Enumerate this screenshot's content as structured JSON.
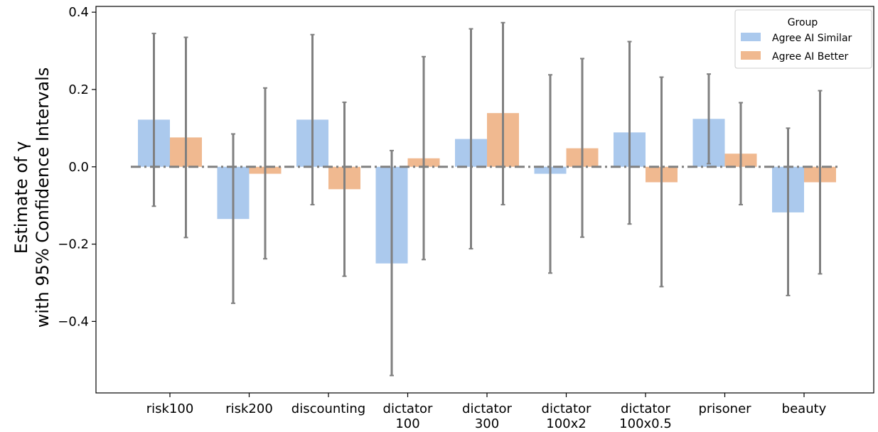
{
  "chart_data": {
    "type": "bar",
    "title": "",
    "xlabel": "",
    "ylabel_line1": "Estimate of γ",
    "ylabel_line2": "with 95% Confidence Intervals",
    "ylim": [
      -0.585,
      0.415
    ],
    "yticks": [
      0.4,
      0.2,
      0.0,
      -0.2,
      -0.4
    ],
    "ytick_labels": [
      "0.4",
      "0.2",
      "0.0",
      "−0.2",
      "−0.4"
    ],
    "categories": [
      [
        "risk100"
      ],
      [
        "risk200"
      ],
      [
        "discounting"
      ],
      [
        "dictator",
        "100"
      ],
      [
        "dictator",
        "300"
      ],
      [
        "dictator",
        "100x2"
      ],
      [
        "dictator",
        "100x0.5"
      ],
      [
        "prisoner"
      ],
      [
        "beauty"
      ]
    ],
    "series": [
      {
        "name": "Agree AI Similar",
        "color": "#abc9ed",
        "values": [
          0.122,
          -0.135,
          0.122,
          -0.25,
          0.072,
          -0.018,
          0.089,
          0.124,
          -0.118
        ],
        "ci_low": [
          -0.102,
          -0.353,
          -0.098,
          -0.54,
          -0.212,
          -0.275,
          -0.148,
          0.008,
          -0.333
        ],
        "ci_high": [
          0.345,
          0.085,
          0.342,
          0.042,
          0.357,
          0.238,
          0.324,
          0.24,
          0.1
        ]
      },
      {
        "name": "Agree AI Better",
        "color": "#f0b990",
        "values": [
          0.076,
          -0.018,
          -0.058,
          0.022,
          0.139,
          0.048,
          -0.04,
          0.034,
          -0.04
        ],
        "ci_low": [
          -0.183,
          -0.238,
          -0.283,
          -0.24,
          -0.098,
          -0.182,
          -0.31,
          -0.098,
          -0.277
        ],
        "ci_high": [
          0.335,
          0.204,
          0.167,
          0.285,
          0.373,
          0.28,
          0.232,
          0.166,
          0.197
        ]
      }
    ],
    "reference_line": 0.0,
    "legend_title": "Group",
    "legend_position": "top-right",
    "grid": false,
    "error_bar_color": "#808080",
    "reference_line_color": "#808080"
  }
}
